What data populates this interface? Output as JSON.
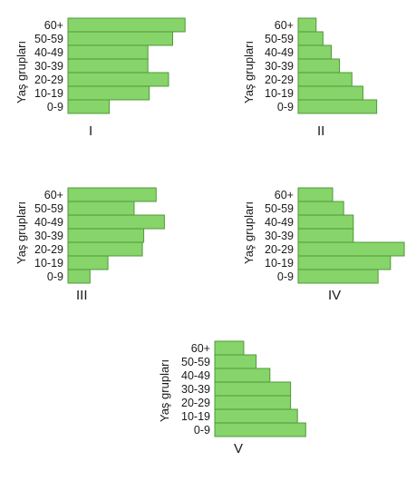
{
  "chart_data": [
    {
      "type": "bar",
      "orientation": "horizontal",
      "label": "I",
      "ylabel": "Yaş grupları",
      "categories": [
        "60+",
        "50-59",
        "40-49",
        "30-39",
        "20-29",
        "10-19",
        "0-9"
      ],
      "values": [
        8.5,
        7.6,
        5.8,
        5.8,
        7.3,
        5.9,
        3.0
      ],
      "grid": false,
      "bar_color": "#86d46a"
    },
    {
      "type": "bar",
      "orientation": "horizontal",
      "label": "II",
      "ylabel": "Yaş grupları",
      "categories": [
        "60+",
        "50-59",
        "40-49",
        "30-39",
        "20-29",
        "10-19",
        "0-9"
      ],
      "values": [
        1.3,
        1.8,
        2.4,
        3.0,
        3.9,
        4.7,
        5.7
      ],
      "grid": false,
      "bar_color": "#86d46a"
    },
    {
      "type": "bar",
      "orientation": "horizontal",
      "label": "III",
      "ylabel": "Yaş grupları",
      "categories": [
        "60+",
        "50-59",
        "40-49",
        "30-39",
        "20-29",
        "10-19",
        "0-9"
      ],
      "values": [
        6.4,
        4.8,
        7.0,
        5.5,
        5.4,
        2.9,
        1.6
      ],
      "grid": false,
      "bar_color": "#86d46a"
    },
    {
      "type": "bar",
      "orientation": "horizontal",
      "label": "IV",
      "ylabel": "Yaş grupları",
      "categories": [
        "60+",
        "50-59",
        "40-49",
        "30-39",
        "20-29",
        "10-19",
        "0-9"
      ],
      "values": [
        2.5,
        3.3,
        4.0,
        4.0,
        7.7,
        6.7,
        5.8
      ],
      "grid": false,
      "bar_color": "#86d46a"
    },
    {
      "type": "bar",
      "orientation": "horizontal",
      "label": "V",
      "ylabel": "Yaş grupları",
      "categories": [
        "60+",
        "50-59",
        "40-49",
        "30-39",
        "20-29",
        "10-19",
        "0-9"
      ],
      "values": [
        2.1,
        3.0,
        4.0,
        5.5,
        5.5,
        6.0,
        6.6
      ],
      "grid": false,
      "bar_color": "#86d46a"
    }
  ]
}
